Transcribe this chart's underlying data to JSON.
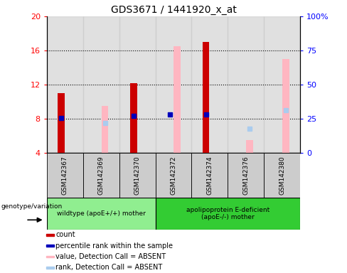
{
  "title": "GDS3671 / 1441920_x_at",
  "samples": [
    "GSM142367",
    "GSM142369",
    "GSM142370",
    "GSM142372",
    "GSM142374",
    "GSM142376",
    "GSM142380"
  ],
  "ylim_left": [
    4,
    20
  ],
  "ylim_right": [
    0,
    100
  ],
  "yticks_left": [
    4,
    8,
    12,
    16,
    20
  ],
  "yticks_right": [
    0,
    25,
    50,
    75,
    100
  ],
  "ytick_labels_right": [
    "0",
    "25",
    "50",
    "75",
    "100%"
  ],
  "red_bars": [
    11.0,
    null,
    12.2,
    null,
    17.0,
    null,
    null
  ],
  "pink_bars": [
    null,
    9.5,
    null,
    16.5,
    null,
    5.5,
    15.0
  ],
  "blue_squares": [
    8.1,
    null,
    8.3,
    8.5,
    8.5,
    null,
    null
  ],
  "light_blue_squares": [
    null,
    7.5,
    null,
    null,
    null,
    6.8,
    9.0
  ],
  "group1_indices": [
    0,
    1,
    2
  ],
  "group2_indices": [
    3,
    4,
    5,
    6
  ],
  "group1_label": "wildtype (apoE+/+) mother",
  "group2_label": "apolipoprotein E-deficient\n(apoE-/-) mother",
  "group1_color": "#90EE90",
  "group2_color": "#33CC33",
  "bar_width": 0.35,
  "red_color": "#CC0000",
  "pink_color": "#FFB6C1",
  "blue_color": "#0000BB",
  "light_blue_color": "#AACCEE",
  "gridline_ticks": [
    8,
    12,
    16
  ],
  "legend_items": [
    {
      "color": "#CC0000",
      "label": "count"
    },
    {
      "color": "#0000BB",
      "label": "percentile rank within the sample"
    },
    {
      "color": "#FFB6C1",
      "label": "value, Detection Call = ABSENT"
    },
    {
      "color": "#AACCEE",
      "label": "rank, Detection Call = ABSENT"
    }
  ],
  "genotype_label": "genotype/variation"
}
